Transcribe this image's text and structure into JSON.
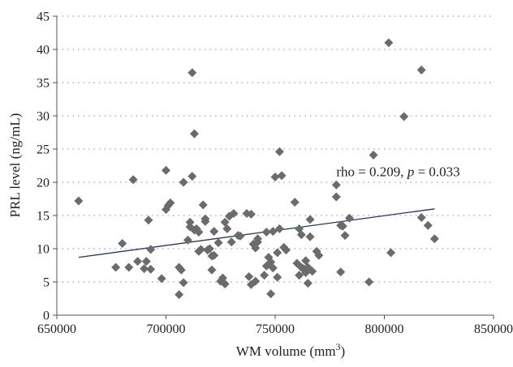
{
  "chart_data": {
    "type": "scatter",
    "xlabel": "WM volume (mm",
    "xlabel_sup": "3",
    "xlabel_end": ")",
    "ylabel": "PRL level (ng/mL)",
    "xlim": [
      650000,
      850000
    ],
    "ylim": [
      0,
      45
    ],
    "xticks": [
      650000,
      700000,
      750000,
      800000,
      850000
    ],
    "yticks": [
      0,
      5,
      10,
      15,
      20,
      25,
      30,
      35,
      40,
      45
    ],
    "xtick_labels": [
      "650000",
      "700000",
      "750000",
      "800000",
      "850000"
    ],
    "ytick_labels": [
      "0",
      "5",
      "10",
      "15",
      "20",
      "25",
      "30",
      "35",
      "40",
      "45"
    ],
    "grid": "horizontal dotted",
    "marker_color": "#6b6b6b",
    "trendline_color": "#1f3b5a",
    "trendline": {
      "x": [
        660000,
        823000
      ],
      "y": [
        8.7,
        16.0
      ]
    },
    "annotation": {
      "prefix": "rho = 0.209, ",
      "p_symbol": "p",
      "suffix": " = 0.033",
      "anchor_x": 778000,
      "anchor_y": 21.5
    },
    "points": [
      [
        660000,
        17.2
      ],
      [
        677000,
        7.2
      ],
      [
        680000,
        10.8
      ],
      [
        683000,
        7.2
      ],
      [
        685000,
        20.4
      ],
      [
        687000,
        8.1
      ],
      [
        690000,
        7.0
      ],
      [
        691000,
        8.1
      ],
      [
        692000,
        14.3
      ],
      [
        693000,
        9.9
      ],
      [
        693000,
        6.9
      ],
      [
        698000,
        5.5
      ],
      [
        700000,
        21.8
      ],
      [
        700000,
        15.9
      ],
      [
        701000,
        16.5
      ],
      [
        702000,
        16.9
      ],
      [
        706000,
        3.1
      ],
      [
        706000,
        7.2
      ],
      [
        707000,
        6.8
      ],
      [
        708000,
        20.0
      ],
      [
        708000,
        4.9
      ],
      [
        710000,
        11.3
      ],
      [
        711000,
        14.0
      ],
      [
        711000,
        13.3
      ],
      [
        712000,
        36.5
      ],
      [
        712000,
        20.9
      ],
      [
        713000,
        27.3
      ],
      [
        713000,
        12.8
      ],
      [
        714000,
        13.0
      ],
      [
        715000,
        9.6
      ],
      [
        715000,
        12.5
      ],
      [
        716000,
        9.9
      ],
      [
        717000,
        16.6
      ],
      [
        718000,
        14.5
      ],
      [
        718000,
        14.1
      ],
      [
        719000,
        9.8
      ],
      [
        720000,
        10.0
      ],
      [
        721000,
        6.8
      ],
      [
        721000,
        8.9
      ],
      [
        722000,
        12.6
      ],
      [
        722000,
        9.0
      ],
      [
        724000,
        10.9
      ],
      [
        725000,
        5.1
      ],
      [
        726000,
        5.6
      ],
      [
        727000,
        4.7
      ],
      [
        727000,
        14.0
      ],
      [
        728000,
        13.0
      ],
      [
        729000,
        14.9
      ],
      [
        730000,
        11.0
      ],
      [
        731000,
        15.3
      ],
      [
        733000,
        12.0
      ],
      [
        734000,
        11.9
      ],
      [
        737000,
        15.3
      ],
      [
        738000,
        5.8
      ],
      [
        739000,
        15.2
      ],
      [
        739000,
        4.6
      ],
      [
        740000,
        10.7
      ],
      [
        741000,
        5.1
      ],
      [
        741000,
        10.1
      ],
      [
        742000,
        11.5
      ],
      [
        742000,
        11.0
      ],
      [
        745000,
        6.0
      ],
      [
        746000,
        7.4
      ],
      [
        746000,
        12.5
      ],
      [
        747000,
        8.7
      ],
      [
        748000,
        3.2
      ],
      [
        748000,
        8.0
      ],
      [
        749000,
        7.1
      ],
      [
        749000,
        12.6
      ],
      [
        750000,
        20.8
      ],
      [
        751000,
        9.4
      ],
      [
        751000,
        5.7
      ],
      [
        752000,
        13.0
      ],
      [
        752000,
        24.6
      ],
      [
        753000,
        21.0
      ],
      [
        754000,
        10.2
      ],
      [
        755000,
        9.8
      ],
      [
        759000,
        17.0
      ],
      [
        760000,
        7.8
      ],
      [
        761000,
        6.0
      ],
      [
        761000,
        13.0
      ],
      [
        762000,
        12.1
      ],
      [
        762000,
        7.2
      ],
      [
        763000,
        7.0
      ],
      [
        764000,
        6.4
      ],
      [
        764000,
        8.2
      ],
      [
        765000,
        7.2
      ],
      [
        765000,
        4.8
      ],
      [
        766000,
        14.4
      ],
      [
        766000,
        11.8
      ],
      [
        767000,
        6.6
      ],
      [
        769000,
        9.6
      ],
      [
        770000,
        9.0
      ],
      [
        778000,
        17.8
      ],
      [
        778000,
        19.6
      ],
      [
        780000,
        6.5
      ],
      [
        780000,
        13.5
      ],
      [
        781000,
        13.4
      ],
      [
        782000,
        12.0
      ],
      [
        784000,
        14.6
      ],
      [
        793000,
        5.0
      ],
      [
        795000,
        24.1
      ],
      [
        802000,
        41.0
      ],
      [
        803000,
        9.4
      ],
      [
        809000,
        29.9
      ],
      [
        817000,
        14.7
      ],
      [
        817000,
        36.9
      ],
      [
        820000,
        13.5
      ],
      [
        823000,
        11.5
      ]
    ]
  }
}
